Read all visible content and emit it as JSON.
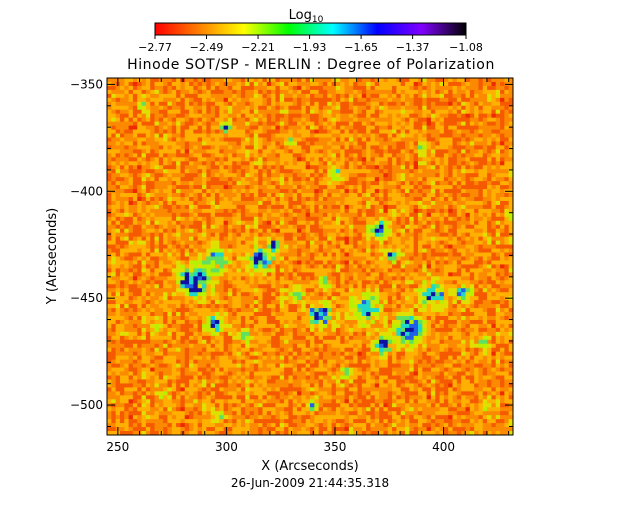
{
  "chart_data": {
    "type": "heatmap",
    "title": "Hinode SOT/SP - MERLIN : Degree of Polarization",
    "subtitle": "26-Jun-2009 21:44:35.318",
    "xlabel": "X (Arcseconds)",
    "ylabel": "Y (Arcseconds)",
    "xlim": [
      245,
      432
    ],
    "ylim": [
      -514,
      -347
    ],
    "x_ticks": [
      250,
      300,
      350,
      400
    ],
    "y_ticks": [
      -350,
      -400,
      -450,
      -500
    ],
    "x_tick_labels": [
      "250",
      "300",
      "350",
      "400"
    ],
    "y_tick_labels": [
      "−350",
      "−400",
      "−450",
      "−500"
    ],
    "colorbar": {
      "title_base": "Log",
      "title_sub": "10",
      "range": [
        -2.77,
        -1.08
      ],
      "tick_values": [
        -2.77,
        -2.49,
        -2.21,
        -1.93,
        -1.65,
        -1.37,
        -1.08
      ],
      "tick_labels": [
        "−2.77",
        "−2.49",
        "−2.21",
        "−1.93",
        "−1.65",
        "−1.37",
        "−1.08"
      ],
      "colormap": [
        "#ff0000",
        "#ff8000",
        "#ffff00",
        "#00ff00",
        "#00ffff",
        "#0000ff",
        "#8000ff",
        "#000000"
      ]
    },
    "field_colors": [
      "#ee2b00",
      "#f55a00",
      "#fc8a00",
      "#ffb000",
      "#e0e000",
      "#b8f000",
      "#60e060",
      "#20d8c8",
      "#2060e8",
      "#1010a0"
    ],
    "features": [
      {
        "x": 285,
        "y": -442,
        "spread": 7,
        "strength": 0.85
      },
      {
        "x": 296,
        "y": -432,
        "spread": 5,
        "strength": 0.6
      },
      {
        "x": 316,
        "y": -432,
        "spread": 5,
        "strength": 0.75
      },
      {
        "x": 322,
        "y": -425,
        "spread": 3,
        "strength": 0.6
      },
      {
        "x": 295,
        "y": -462,
        "spread": 4,
        "strength": 0.7
      },
      {
        "x": 309,
        "y": -468,
        "spread": 3,
        "strength": 0.5
      },
      {
        "x": 343,
        "y": -458,
        "spread": 5,
        "strength": 0.8
      },
      {
        "x": 364,
        "y": -455,
        "spread": 7,
        "strength": 0.55
      },
      {
        "x": 371,
        "y": -418,
        "spread": 4,
        "strength": 0.8
      },
      {
        "x": 376,
        "y": -430,
        "spread": 3,
        "strength": 0.55
      },
      {
        "x": 384,
        "y": -465,
        "spread": 6,
        "strength": 0.9
      },
      {
        "x": 372,
        "y": -472,
        "spread": 4,
        "strength": 0.8
      },
      {
        "x": 395,
        "y": -448,
        "spread": 6,
        "strength": 0.6
      },
      {
        "x": 409,
        "y": -447,
        "spread": 4,
        "strength": 0.55
      },
      {
        "x": 300,
        "y": -370,
        "spread": 2.5,
        "strength": 0.6
      },
      {
        "x": 350,
        "y": -392,
        "spread": 3,
        "strength": 0.5
      },
      {
        "x": 333,
        "y": -448,
        "spread": 4,
        "strength": 0.45
      },
      {
        "x": 345,
        "y": -443,
        "spread": 3,
        "strength": 0.4
      },
      {
        "x": 297,
        "y": -505,
        "spread": 2.5,
        "strength": 0.5
      },
      {
        "x": 268,
        "y": -465,
        "spread": 3,
        "strength": 0.35
      },
      {
        "x": 340,
        "y": -500,
        "spread": 2.5,
        "strength": 0.45
      },
      {
        "x": 355,
        "y": -485,
        "spread": 3,
        "strength": 0.35
      },
      {
        "x": 418,
        "y": -470,
        "spread": 3,
        "strength": 0.35
      },
      {
        "x": 420,
        "y": -500,
        "spread": 3,
        "strength": 0.3
      },
      {
        "x": 262,
        "y": -360,
        "spread": 2.5,
        "strength": 0.35
      },
      {
        "x": 258,
        "y": -425,
        "spread": 3,
        "strength": 0.3
      },
      {
        "x": 430,
        "y": -410,
        "spread": 2.5,
        "strength": 0.35
      },
      {
        "x": 330,
        "y": -375,
        "spread": 3,
        "strength": 0.25
      },
      {
        "x": 390,
        "y": -380,
        "spread": 3,
        "strength": 0.25
      },
      {
        "x": 270,
        "y": -495,
        "spread": 3,
        "strength": 0.3
      }
    ]
  }
}
